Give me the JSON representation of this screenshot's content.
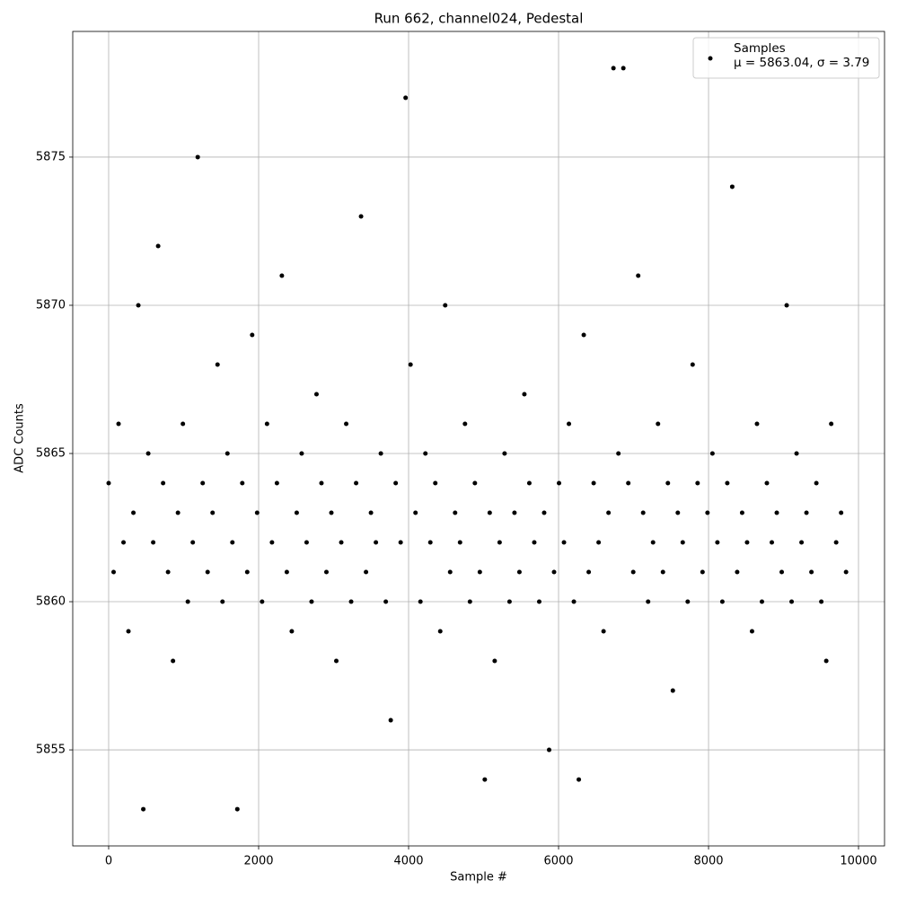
{
  "chart_data": {
    "type": "scatter",
    "title": "Run 662, channel024, Pedestal",
    "x_label": "Sample #",
    "y_label": "ADC Counts",
    "xlim": [
      -479,
      10347
    ],
    "ylim": [
      5851.76,
      5879.24
    ],
    "xticks": [
      0,
      2000,
      4000,
      6000,
      8000,
      10000
    ],
    "yticks": [
      5855,
      5860,
      5865,
      5870,
      5875
    ],
    "grid": true,
    "legend": "upper right",
    "series": [
      {
        "name": "Samples\nμ = 5863.04, σ = 3.79",
        "color": "#000000",
        "x": [
          0,
          66,
          132,
          198,
          264,
          330,
          396,
          462,
          528,
          594,
          660,
          726,
          792,
          858,
          924,
          990,
          1056,
          1122,
          1188,
          1254,
          1320,
          1386,
          1452,
          1518,
          1584,
          1650,
          1716,
          1782,
          1848,
          1914,
          1980,
          2046,
          2112,
          2178,
          2244,
          2310,
          2376,
          2442,
          2508,
          2574,
          2640,
          2706,
          2772,
          2838,
          2904,
          2970,
          3036,
          3102,
          3168,
          3234,
          3300,
          3366,
          3432,
          3498,
          3564,
          3630,
          3696,
          3762,
          3828,
          3894,
          3960,
          4026,
          4092,
          4158,
          4224,
          4290,
          4356,
          4422,
          4488,
          4554,
          4620,
          4686,
          4752,
          4818,
          4884,
          4950,
          5016,
          5082,
          5148,
          5214,
          5280,
          5346,
          5412,
          5478,
          5544,
          5610,
          5676,
          5742,
          5808,
          5874,
          5940,
          6006,
          6072,
          6138,
          6204,
          6270,
          6336,
          6402,
          6468,
          6534,
          6600,
          6666,
          6732,
          6798,
          6864,
          6930,
          6996,
          7062,
          7128,
          7194,
          7260,
          7326,
          7392,
          7458,
          7524,
          7590,
          7656,
          7722,
          7788,
          7854,
          7920,
          7986,
          8052,
          8118,
          8184,
          8250,
          8316,
          8382,
          8448,
          8514,
          8580,
          8646,
          8712,
          8778,
          8844,
          8910,
          8976,
          9042,
          9108,
          9174,
          9240,
          9306,
          9372,
          9438,
          9504,
          9570,
          9636,
          9702,
          9768,
          9834
        ],
        "values": [
          5864,
          5861,
          5866,
          5862,
          5859,
          5863,
          5870,
          5853,
          5865,
          5862,
          5872,
          5864,
          5861,
          5858,
          5863,
          5866,
          5860,
          5862,
          5875,
          5864,
          5861,
          5863,
          5868,
          5860,
          5865,
          5862,
          5853,
          5864,
          5861,
          5869,
          5863,
          5860,
          5866,
          5862,
          5864,
          5871,
          5861,
          5859,
          5863,
          5865,
          5862,
          5860,
          5867,
          5864,
          5861,
          5863,
          5858,
          5862,
          5866,
          5860,
          5864,
          5873,
          5861,
          5863,
          5862,
          5865,
          5860,
          5856,
          5864,
          5862,
          5877,
          5868,
          5863,
          5860,
          5865,
          5862,
          5864,
          5859,
          5870,
          5861,
          5863,
          5862,
          5866,
          5860,
          5864,
          5861,
          5854,
          5863,
          5858,
          5862,
          5865,
          5860,
          5863,
          5861,
          5867,
          5864,
          5862,
          5860,
          5863,
          5855,
          5861,
          5864,
          5862,
          5866,
          5860,
          5854,
          5869,
          5861,
          5864,
          5862,
          5859,
          5863,
          5878,
          5865,
          5878,
          5864,
          5861,
          5871,
          5863,
          5860,
          5862,
          5866,
          5861,
          5864,
          5857,
          5863,
          5862,
          5860,
          5868,
          5864,
          5861,
          5863,
          5865,
          5862,
          5860,
          5864,
          5874,
          5861,
          5863,
          5862,
          5859,
          5866,
          5860,
          5864,
          5862,
          5863,
          5861,
          5870,
          5860,
          5865,
          5862,
          5863,
          5861,
          5864,
          5860,
          5858,
          5866,
          5862,
          5863,
          5861
        ]
      }
    ]
  }
}
